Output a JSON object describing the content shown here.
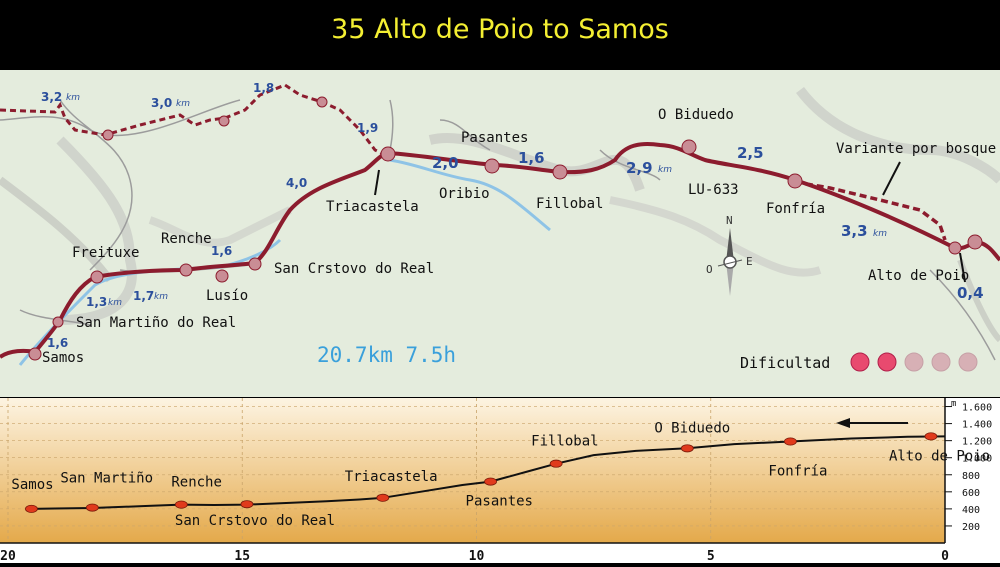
{
  "title": "35 Alto de Poio to Samos",
  "map": {
    "towns": {
      "samos": "Samos",
      "san_martino": "San Martiño do Real",
      "freituxe": "Freituxe",
      "renche": "Renche",
      "lusio": "Lusío",
      "san_cristovo": "San Crstovo do Real",
      "triacastela": "Triacastela",
      "pasantes": "Pasantes",
      "oribio": "Oribio",
      "fillobal": "Fillobal",
      "o_biduedo": "O Biduedo",
      "lu633": "LU-633",
      "fonfria": "Fonfría",
      "variante": "Variante por bosque",
      "alto_de_poio": "Alto de Poio"
    },
    "distances": {
      "d_3_2": "3,2",
      "d_3_0": "3,0",
      "d_1_8": "1,8",
      "d_1_9": "1,9",
      "d_4_0": "4,0",
      "d_1_6a": "1,6",
      "d_1_7": "1,7",
      "d_1_3": "1,3",
      "d_1_6b": "1,6",
      "d_2_0": "2,0",
      "d_1_6c": "1,6",
      "d_2_9": "2,9",
      "d_2_5": "2,5",
      "d_3_3": "3,3",
      "d_0_4": "0,4"
    },
    "km_unit": "km",
    "summary": "20.7km 7.5h",
    "compass": {
      "n": "N",
      "o": "O",
      "e": "E"
    },
    "difficulty": {
      "label": "Dificultad",
      "level": 2,
      "max": 5
    }
  },
  "chart_data": {
    "type": "line",
    "title": "",
    "xlabel": "",
    "ylabel": "",
    "y_unit": "m",
    "xlim": [
      20,
      0
    ],
    "ylim": [
      0,
      1700
    ],
    "x_ticks": [
      20,
      15,
      10,
      5,
      0
    ],
    "y_ticks": [
      200,
      400,
      600,
      800,
      1000,
      1200,
      1400,
      1600
    ],
    "y_tick_labels": [
      "200",
      "400",
      "600",
      "800",
      "1.000",
      "1.200",
      "1.400",
      "1.600"
    ],
    "profile": [
      [
        0.0,
        1250
      ],
      [
        0.8,
        1245
      ],
      [
        2.0,
        1225
      ],
      [
        3.3,
        1190
      ],
      [
        4.5,
        1160
      ],
      [
        5.5,
        1110
      ],
      [
        6.6,
        1080
      ],
      [
        7.5,
        1030
      ],
      [
        8.3,
        930
      ],
      [
        8.9,
        840
      ],
      [
        9.7,
        720
      ],
      [
        10.3,
        680
      ],
      [
        11.2,
        600
      ],
      [
        12.0,
        530
      ],
      [
        12.5,
        510
      ],
      [
        13.2,
        490
      ],
      [
        14.0,
        470
      ],
      [
        14.9,
        450
      ],
      [
        15.6,
        445
      ],
      [
        16.3,
        450
      ],
      [
        17.0,
        435
      ],
      [
        18.2,
        410
      ],
      [
        19.0,
        405
      ],
      [
        19.5,
        400
      ]
    ],
    "points": [
      {
        "name": "Alto de Poio",
        "x": 0.3,
        "y": 1250
      },
      {
        "name": "Fonfría",
        "x": 3.3,
        "y": 1190
      },
      {
        "name": "O Biduedo",
        "x": 5.5,
        "y": 1110
      },
      {
        "name": "Fillobal",
        "x": 8.3,
        "y": 930
      },
      {
        "name": "Pasantes",
        "x": 9.7,
        "y": 720
      },
      {
        "name": "Triacastela",
        "x": 12.0,
        "y": 530
      },
      {
        "name": "San Crstovo do Real",
        "x": 14.9,
        "y": 455
      },
      {
        "name": "Renche",
        "x": 16.3,
        "y": 450
      },
      {
        "name": "San Martiño",
        "x": 18.2,
        "y": 415
      },
      {
        "name": "Samos",
        "x": 19.5,
        "y": 400
      }
    ]
  }
}
